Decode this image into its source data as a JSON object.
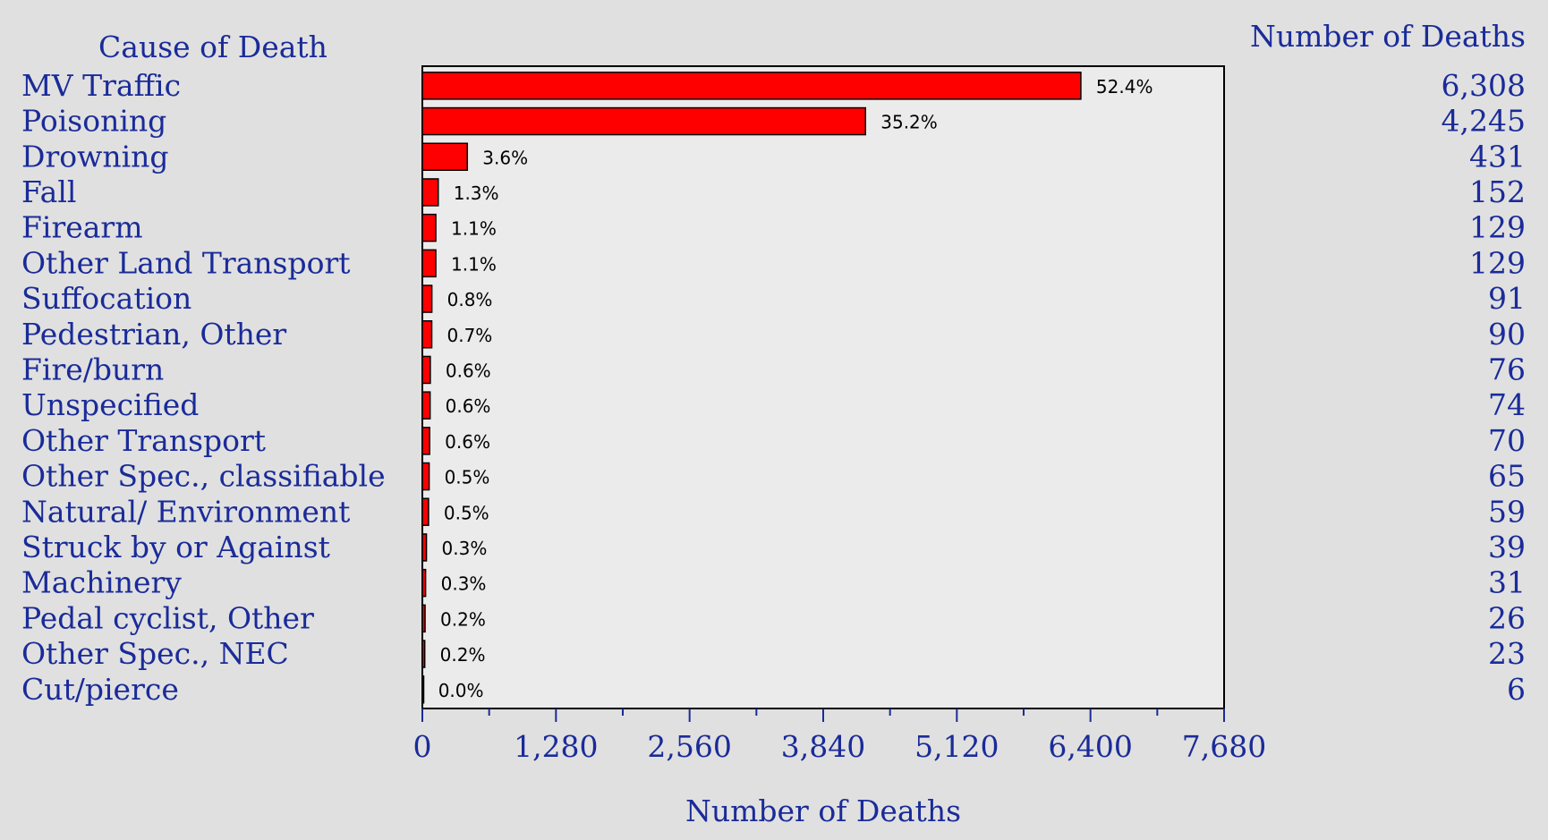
{
  "chart_data": {
    "type": "bar",
    "orientation": "horizontal",
    "category_header": "Cause of Death",
    "value_header": "Number of Deaths",
    "xlabel": "Number of Deaths",
    "ylabel": "",
    "xlim": [
      0,
      7680
    ],
    "x_ticks": [
      "0",
      "1,280",
      "2,560",
      "3,840",
      "5,120",
      "6,400",
      "7,680"
    ],
    "x_tick_values": [
      0,
      1280,
      2560,
      3840,
      5120,
      6400,
      7680
    ],
    "categories": [
      "MV Traffic",
      "Poisoning",
      "Drowning",
      "Fall",
      "Firearm",
      "Other Land Transport",
      "Suffocation",
      "Pedestrian, Other",
      "Fire/burn",
      "Unspecified",
      "Other Transport",
      "Other Spec., classifiable",
      "Natural/ Environment",
      "Struck by or Against",
      "Machinery",
      "Pedal cyclist, Other",
      "Other Spec., NEC",
      "Cut/pierce"
    ],
    "values": [
      6308,
      4245,
      431,
      152,
      129,
      129,
      91,
      90,
      76,
      74,
      70,
      65,
      59,
      39,
      31,
      26,
      23,
      6
    ],
    "value_labels": [
      "6,308",
      "4,245",
      "431",
      "152",
      "129",
      "129",
      "91",
      "90",
      "76",
      "74",
      "70",
      "65",
      "59",
      "39",
      "31",
      "26",
      "23",
      "6"
    ],
    "percent_labels": [
      "52.4%",
      "35.2%",
      "3.6%",
      "1.3%",
      "1.1%",
      "1.1%",
      "0.8%",
      "0.7%",
      "0.6%",
      "0.6%",
      "0.6%",
      "0.5%",
      "0.5%",
      "0.3%",
      "0.3%",
      "0.2%",
      "0.2%",
      "0.0%"
    ],
    "colors": {
      "bar": "#ff0000",
      "bar_outline": "#000000",
      "text": "#1a2b99",
      "plot_bg": "#ebebeb",
      "page_bg": "#e0e0e0"
    },
    "grid": false,
    "legend": "none"
  }
}
